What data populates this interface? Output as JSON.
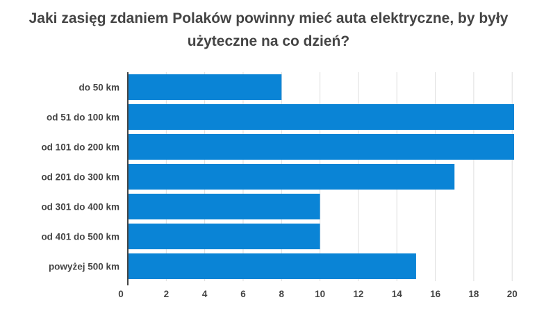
{
  "chart_data": {
    "type": "bar",
    "orientation": "horizontal",
    "title": "Jaki zasięg zdaniem Polaków powinny mieć auta elektryczne, by były użyteczne na co dzień?",
    "categories": [
      "do 50 km",
      "od 51 do 100 km",
      "od 101 do 200 km",
      "od 201 do 300 km",
      "od 301 do 400 km",
      "od 401 do 500 km",
      "powyżej 500 km"
    ],
    "values": [
      8,
      20.1,
      20.1,
      17,
      10,
      10,
      15
    ],
    "xlim": [
      0,
      20.1
    ],
    "xticks": [
      "0",
      "2",
      "4",
      "6",
      "8",
      "10",
      "12",
      "14",
      "16",
      "18",
      "20"
    ],
    "grid": true,
    "bar_color": "#0a84d6",
    "grid_color": "#dddddd",
    "axis_color": "#444444"
  }
}
